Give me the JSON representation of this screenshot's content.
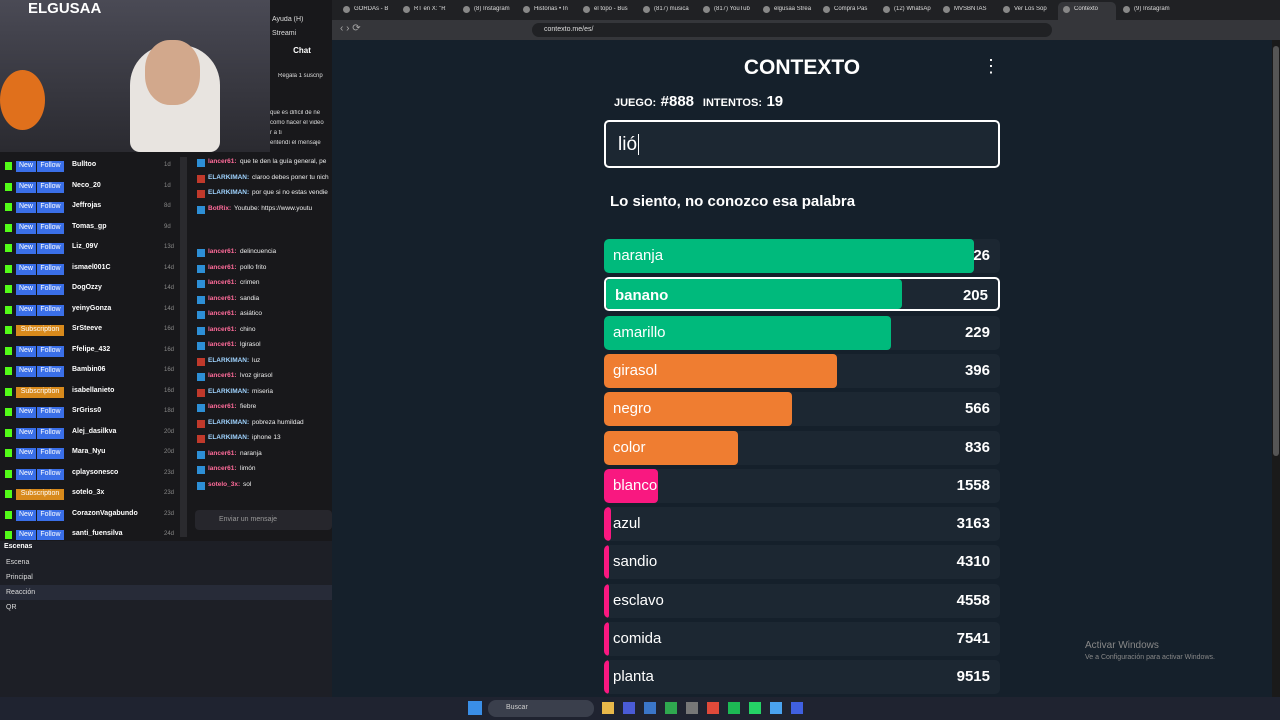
{
  "stream": {
    "webcam_label": "ELGUSAA",
    "menu": [
      "Ayuda (H)",
      "Streami"
    ],
    "chat_title": "Chat",
    "gift_text": "Regala 1 suscrip",
    "chat_top": [
      "que es difícil de ne",
      "como hacer el video",
      "r a ti",
      "entendí el mensaje"
    ],
    "followers": [
      {
        "badge": "New",
        "kind": "Follow",
        "name": "Bulltoo",
        "time": "1d"
      },
      {
        "badge": "New",
        "kind": "Follow",
        "name": "Neco_20",
        "time": "1d"
      },
      {
        "badge": "New",
        "kind": "Follow",
        "name": "Jeffrojas",
        "time": "8d"
      },
      {
        "badge": "New",
        "kind": "Follow",
        "name": "Tomas_gp",
        "time": "9d"
      },
      {
        "badge": "New",
        "kind": "Follow",
        "name": "Liz_09V",
        "time": "13d"
      },
      {
        "badge": "New",
        "kind": "Follow",
        "name": "ismael001C",
        "time": "14d"
      },
      {
        "badge": "New",
        "kind": "Follow",
        "name": "DogOzzy",
        "time": "14d"
      },
      {
        "badge": "New",
        "kind": "Follow",
        "name": "yeinyGonza",
        "time": "14d"
      },
      {
        "badge": "Subscription",
        "kind": null,
        "name": "SrSteeve",
        "time": "16d"
      },
      {
        "badge": "New",
        "kind": "Follow",
        "name": "Ffelipe_432",
        "time": "16d"
      },
      {
        "badge": "New",
        "kind": "Follow",
        "name": "Bambin06",
        "time": "16d"
      },
      {
        "badge": "Subscription",
        "kind": null,
        "name": "isabellanieto",
        "time": "16d"
      },
      {
        "badge": "New",
        "kind": "Follow",
        "name": "SrGriss0",
        "time": "18d"
      },
      {
        "badge": "New",
        "kind": "Follow",
        "name": "Alej_dasilkva",
        "time": "20d"
      },
      {
        "badge": "New",
        "kind": "Follow",
        "name": "Mara_Nyu",
        "time": "20d"
      },
      {
        "badge": "New",
        "kind": "Follow",
        "name": "cplaysonesco",
        "time": "23d"
      },
      {
        "badge": "Subscription",
        "kind": null,
        "name": "sotelo_3x",
        "time": "23d"
      },
      {
        "badge": "New",
        "kind": "Follow",
        "name": "CorazonVagabundo",
        "time": "23d"
      },
      {
        "badge": "New",
        "kind": "Follow",
        "name": "santi_fuensilva",
        "time": "24d"
      }
    ],
    "chat": [
      {
        "user": "lancer61:",
        "text": "que te den la guía general, pe"
      },
      {
        "user": "ELARKIMAN:",
        "text": "claroo debes poner tu nich"
      },
      {
        "user": "ELARKIMAN:",
        "text": "por que si no estas vendie"
      },
      {
        "user": "BotRix:",
        "text": "Youtube: https://www.youtu"
      },
      {
        "user": "lancer61:",
        "text": "delincuencia"
      },
      {
        "user": "lancer61:",
        "text": "pollo frito"
      },
      {
        "user": "lancer61:",
        "text": "crimen"
      },
      {
        "user": "lancer61:",
        "text": "sandia"
      },
      {
        "user": "lancer61:",
        "text": "asiático"
      },
      {
        "user": "lancer61:",
        "text": "chino"
      },
      {
        "user": "lancer61:",
        "text": "lgirasol"
      },
      {
        "user": "ELARKIMAN:",
        "text": "luz"
      },
      {
        "user": "lancer61:",
        "text": "lvoz girasol"
      },
      {
        "user": "ELARKIMAN:",
        "text": "miseria"
      },
      {
        "user": "lancer61:",
        "text": "fiebre"
      },
      {
        "user": "ELARKIMAN:",
        "text": "pobreza humildad"
      },
      {
        "user": "ELARKIMAN:",
        "text": "iphone 13"
      },
      {
        "user": "lancer61:",
        "text": "naranja"
      },
      {
        "user": "lancer61:",
        "text": "limón"
      },
      {
        "user": "sotelo_3x:",
        "text": "sol"
      }
    ],
    "chat_input": "Enviar un mensaje",
    "scenes_title": "Escenas",
    "scenes": [
      "Escena",
      "Principal",
      "Reacción",
      "QR"
    ]
  },
  "browser": {
    "tabs": [
      "GORDAs - B",
      "RT en X: \"R",
      "(8) Instagram",
      "Historias • In",
      "el topo - Bus",
      "(817) musica",
      "(817) YouTub",
      "elgusaa Strea",
      "Compra Pas",
      "(12) WhatsAp",
      "MVSBNTAS",
      "Ver Los Sop",
      "Contexto",
      "(9) Instagram"
    ],
    "url": "contexto.me/es/"
  },
  "game": {
    "title": "CONTEXTO",
    "game_label": "JUEGO:",
    "game_number": "#888",
    "attempts_label": "INTENTOS:",
    "attempts": "19",
    "input": "lió",
    "message": "Lo siento, no conozco esa palabra",
    "guesses": [
      {
        "word": "naranja",
        "rank": 26
      },
      {
        "word": "banano",
        "rank": 205
      },
      {
        "word": "amarillo",
        "rank": 229
      },
      {
        "word": "girasol",
        "rank": 396
      },
      {
        "word": "negro",
        "rank": 566
      },
      {
        "word": "color",
        "rank": 836
      },
      {
        "word": "blanco",
        "rank": 1558
      },
      {
        "word": "azul",
        "rank": 3163
      },
      {
        "word": "sandio",
        "rank": 4310
      },
      {
        "word": "esclavo",
        "rank": 4558
      },
      {
        "word": "comida",
        "rank": 7541
      },
      {
        "word": "planta",
        "rank": 9515
      }
    ]
  },
  "windows": {
    "activate_title": "Activar Windows",
    "activate_text": "Ve a Configuración para activar Windows.",
    "search": "Buscar"
  }
}
